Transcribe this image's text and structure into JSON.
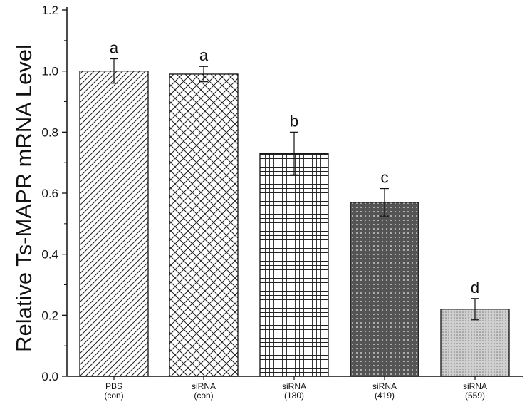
{
  "chart_data": {
    "type": "bar",
    "title": "",
    "xlabel": "",
    "ylabel": "Relative Ts-MAPR mRNA Level",
    "ylim": [
      0,
      1.2
    ],
    "yticks": [
      "0.0",
      "0.2",
      "0.4",
      "0.6",
      "0.8",
      "1.0",
      "1.2"
    ],
    "grid": false,
    "legend": "none",
    "categories": [
      {
        "line1": "PBS",
        "line2": "(con)"
      },
      {
        "line1": "siRNA",
        "line2": "(con)"
      },
      {
        "line1": "siRNA",
        "line2": "(180)"
      },
      {
        "line1": "siRNA",
        "line2": "(419)"
      },
      {
        "line1": "siRNA",
        "line2": "(559)"
      }
    ],
    "values": [
      1.0,
      0.99,
      0.73,
      0.57,
      0.22
    ],
    "errors": [
      0.04,
      0.025,
      0.07,
      0.045,
      0.035
    ],
    "significance": [
      "a",
      "a",
      "b",
      "c",
      "d"
    ],
    "patterns": [
      "diagonal-hatch",
      "crosshatch",
      "grid",
      "dark-dotted",
      "light-dotted"
    ],
    "colors": {
      "axis": "#111111",
      "bar_outline": "#111111",
      "dark_fill": "#555555",
      "light_fill": "#c8c8c8"
    }
  }
}
